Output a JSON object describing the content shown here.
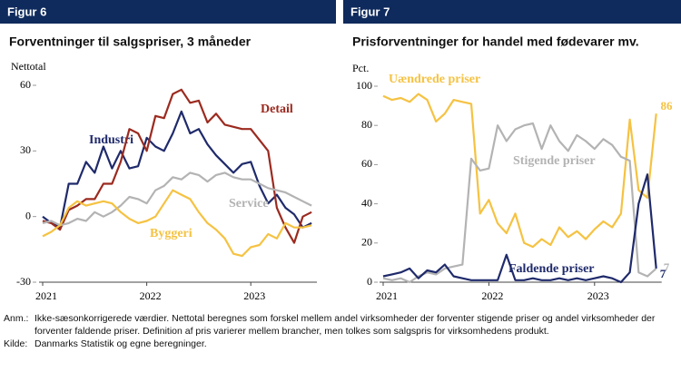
{
  "chart_data": [
    {
      "type": "line",
      "figure_label": "Figur 6",
      "title": "Forventninger til salgspriser, 3 måneder",
      "y_label": "Nettotal",
      "categories": [
        "2021",
        null,
        null,
        null,
        null,
        null,
        null,
        null,
        null,
        null,
        null,
        null,
        "2022",
        null,
        null,
        null,
        null,
        null,
        null,
        null,
        null,
        null,
        null,
        null,
        "2023",
        null,
        null,
        null,
        null,
        null,
        null,
        null
      ],
      "ylim": [
        -30,
        60
      ],
      "yticks": [
        -30,
        0,
        30,
        60
      ],
      "data_labels": false,
      "series": [
        {
          "name": "Industri",
          "color": "#1f2a6b",
          "values": [
            0,
            -3,
            -5,
            15,
            15,
            25,
            20,
            32,
            22,
            30,
            22,
            23,
            36,
            32,
            30,
            38,
            48,
            38,
            40,
            33,
            28,
            24,
            20,
            24,
            25,
            14,
            6,
            10,
            4,
            1,
            -5,
            -3
          ]
        },
        {
          "name": "Detail",
          "color": "#9b2a1f",
          "values": [
            -2,
            -3,
            -6,
            3,
            5,
            8,
            8,
            15,
            15,
            25,
            40,
            38,
            30,
            46,
            45,
            56,
            58,
            52,
            53,
            43,
            47,
            42,
            41,
            40,
            40,
            35,
            30,
            4,
            -5,
            -12,
            0,
            2
          ]
        },
        {
          "name": "Service",
          "color": "#b3b3b3",
          "values": [
            -3,
            -2,
            -4,
            -3,
            -1,
            -2,
            2,
            0,
            2,
            5,
            9,
            8,
            6,
            12,
            14,
            18,
            17,
            20,
            19,
            16,
            19,
            20,
            18,
            17,
            17,
            15,
            13,
            12,
            11,
            9,
            7,
            5
          ]
        },
        {
          "name": "Byggeri",
          "color": "#f5c242",
          "values": [
            -9,
            -7,
            -4,
            4,
            7,
            5,
            6,
            7,
            6,
            2,
            -1,
            -3,
            -2,
            0,
            6,
            12,
            10,
            8,
            2,
            -3,
            -6,
            -10,
            -17,
            -18,
            -14,
            -13,
            -8,
            -10,
            -3,
            -5,
            -5,
            -4
          ]
        }
      ]
    },
    {
      "type": "line",
      "figure_label": "Figur 7",
      "title": "Prisforventninger for handel med fødevarer mv.",
      "y_label": "Pct.",
      "categories": [
        "2021",
        null,
        null,
        null,
        null,
        null,
        null,
        null,
        null,
        null,
        null,
        null,
        "2022",
        null,
        null,
        null,
        null,
        null,
        null,
        null,
        null,
        null,
        null,
        null,
        "2023",
        null,
        null,
        null,
        null,
        null,
        null,
        null
      ],
      "ylim": [
        0,
        100
      ],
      "yticks": [
        0,
        20,
        40,
        60,
        80,
        100
      ],
      "data_labels": true,
      "series": [
        {
          "name": "Uændrede priser",
          "color": "#f5c242",
          "values": [
            95,
            93,
            94,
            92,
            96,
            93,
            82,
            86,
            93,
            92,
            91,
            35,
            42,
            30,
            25,
            35,
            20,
            18,
            22,
            19,
            28,
            23,
            26,
            22,
            27,
            31,
            28,
            35,
            83,
            47,
            43,
            86
          ]
        },
        {
          "name": "Stigende priser",
          "color": "#b3b3b3",
          "values": [
            2,
            1,
            2,
            0,
            3,
            5,
            4,
            7,
            8,
            9,
            63,
            57,
            58,
            80,
            72,
            78,
            80,
            81,
            68,
            80,
            72,
            67,
            75,
            72,
            68,
            73,
            70,
            64,
            62,
            5,
            3,
            7
          ]
        },
        {
          "name": "Faldende priser",
          "color": "#1f2a6b",
          "values": [
            3,
            4,
            5,
            7,
            2,
            6,
            5,
            9,
            3,
            2,
            1,
            1,
            1,
            1,
            14,
            1,
            1,
            2,
            1,
            1,
            2,
            1,
            2,
            1,
            2,
            3,
            2,
            0,
            5,
            40,
            55,
            7
          ]
        }
      ]
    }
  ],
  "notes": {
    "anm_label": "Anm.:",
    "anm_text": "Ikke-sæsonkorrigerede værdier. Nettotal beregnes som forskel mellem andel virksomheder der forventer stigende priser og andel virksomheder der forventer faldende priser. Definition af pris varierer mellem brancher, men tolkes som salgspris for virksomhedens produkt.",
    "kilde_label": "Kilde:",
    "kilde_text": "Danmarks Statistik og egne beregninger."
  }
}
